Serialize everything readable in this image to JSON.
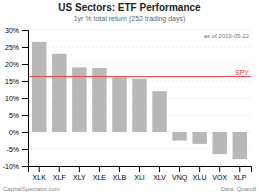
{
  "chart_data": {
    "type": "bar",
    "title": "US Sectors: ETF Performance",
    "subtitle": "1yr % total return (252 trading days)",
    "annotations": [
      "as of  2019-05-22",
      "CapitalSpectator.com",
      "Data: Quandl"
    ],
    "categories": [
      "XLK",
      "XLF",
      "XLY",
      "XLE",
      "XLB",
      "XLI",
      "XLV",
      "VNQ",
      "XLU",
      "VOX",
      "XLP"
    ],
    "values": [
      26.5,
      23.0,
      19.0,
      18.8,
      16.1,
      15.7,
      12.0,
      -2.5,
      -3.5,
      -6.5,
      -8.0
    ],
    "color": "#b8b8b8",
    "reference_lines": [
      {
        "value": 16.3,
        "label": "SPY",
        "color": "#e84040"
      }
    ],
    "ylim": [
      -10,
      30
    ],
    "yticks": [
      {
        "value": -10,
        "label": "-10%"
      },
      {
        "value": -5,
        "label": "-5%"
      },
      {
        "value": 0,
        "label": "0%"
      },
      {
        "value": 5,
        "label": "5%"
      },
      {
        "value": 10,
        "label": "10%"
      },
      {
        "value": 15,
        "label": "15%"
      },
      {
        "value": 20,
        "label": "20%"
      },
      {
        "value": 25,
        "label": "25%"
      },
      {
        "value": 30,
        "label": "30%"
      }
    ],
    "grid": true
  }
}
